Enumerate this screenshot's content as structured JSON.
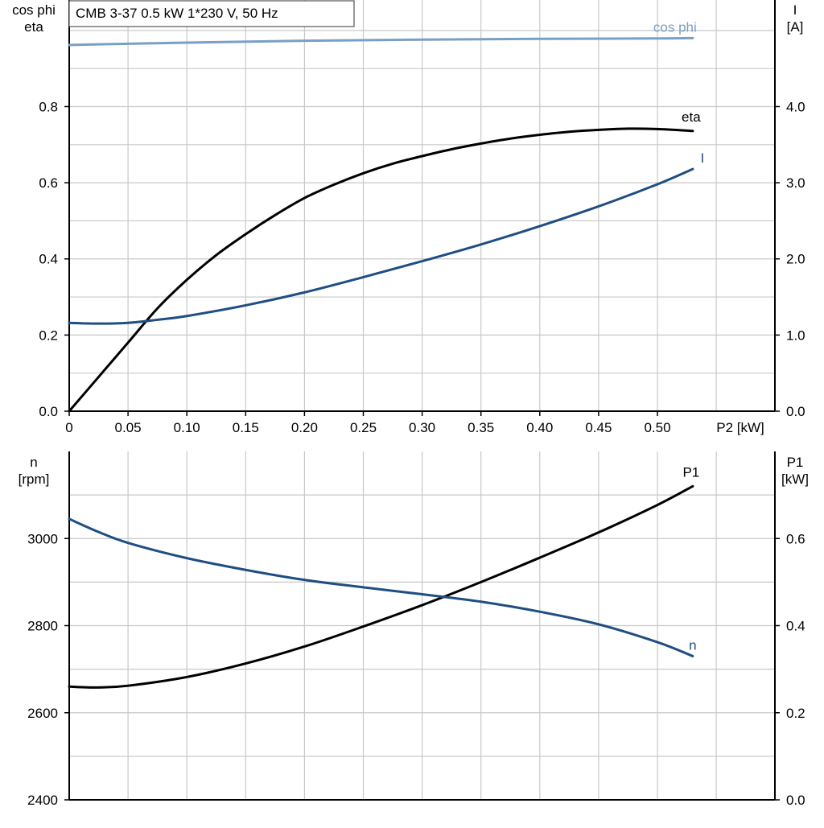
{
  "colors": {
    "black": "#000000",
    "blue": "#1f4e82",
    "lightblue": "#7a9fc4"
  },
  "chart_data": [
    {
      "type": "line",
      "title": "CMB 3-37   0.5 kW   1*230 V, 50 Hz",
      "xlabel": "P2 [kW]",
      "ylabel_left": [
        "cos phi",
        "eta"
      ],
      "ylabel_right": [
        "I",
        "[A]"
      ],
      "xlim": [
        0,
        0.6
      ],
      "ylim_left": [
        0,
        1.08
      ],
      "ylim_right": [
        0,
        5.4
      ],
      "xticks": [
        0,
        0.05,
        0.1,
        0.15,
        0.2,
        0.25,
        0.3,
        0.35,
        0.4,
        0.45,
        0.5
      ],
      "xtick_labels": [
        "0",
        "0.05",
        "0.10",
        "0.15",
        "0.20",
        "0.25",
        "0.30",
        "0.35",
        "0.40",
        "0.45",
        "0.50"
      ],
      "yticks_left": [
        0,
        0.2,
        0.4,
        0.6,
        0.8
      ],
      "ytick_labels_left": [
        "0.0",
        "0.2",
        "0.4",
        "0.6",
        "0.8"
      ],
      "yticks_right": [
        0,
        1,
        2,
        3,
        4
      ],
      "ytick_labels_right": [
        "0.0",
        "1.0",
        "2.0",
        "3.0",
        "4.0"
      ],
      "grid": true,
      "series": [
        {
          "name": "cos phi",
          "axis": "left",
          "color": "#7a9fc4",
          "x": [
            0,
            0.1,
            0.2,
            0.3,
            0.4,
            0.5,
            0.53
          ],
          "y": [
            0.962,
            0.968,
            0.973,
            0.976,
            0.978,
            0.979,
            0.98
          ]
        },
        {
          "name": "eta",
          "axis": "left",
          "color": "#000000",
          "x": [
            0,
            0.025,
            0.05,
            0.075,
            0.1,
            0.125,
            0.15,
            0.175,
            0.2,
            0.225,
            0.25,
            0.275,
            0.3,
            0.325,
            0.35,
            0.375,
            0.4,
            0.425,
            0.45,
            0.475,
            0.5,
            0.53
          ],
          "y": [
            0,
            0.09,
            0.18,
            0.27,
            0.345,
            0.41,
            0.465,
            0.515,
            0.56,
            0.595,
            0.625,
            0.65,
            0.67,
            0.688,
            0.703,
            0.716,
            0.726,
            0.734,
            0.739,
            0.742,
            0.741,
            0.736
          ]
        },
        {
          "name": "I",
          "axis": "right",
          "color": "#1f4e82",
          "x": [
            0,
            0.025,
            0.05,
            0.075,
            0.1,
            0.15,
            0.2,
            0.25,
            0.3,
            0.35,
            0.4,
            0.45,
            0.5,
            0.53
          ],
          "y": [
            1.16,
            1.15,
            1.16,
            1.2,
            1.25,
            1.39,
            1.56,
            1.76,
            1.97,
            2.19,
            2.43,
            2.69,
            2.98,
            3.18
          ]
        }
      ]
    },
    {
      "type": "line",
      "xlabel": "",
      "ylabel_left": [
        "n",
        "[rpm]"
      ],
      "ylabel_right": [
        "P1",
        "[kW]"
      ],
      "xlim": [
        0,
        0.6
      ],
      "ylim_left": [
        2400,
        3200
      ],
      "ylim_right": [
        0,
        0.8
      ],
      "yticks_left": [
        2400,
        2600,
        2800,
        3000
      ],
      "ytick_labels_left": [
        "2400",
        "2600",
        "2800",
        "3000"
      ],
      "yticks_right": [
        0,
        0.2,
        0.4,
        0.6
      ],
      "ytick_labels_right": [
        "0.0",
        "0.2",
        "0.4",
        "0.6"
      ],
      "grid": true,
      "series": [
        {
          "name": "P1",
          "axis": "right",
          "color": "#000000",
          "x": [
            0,
            0.025,
            0.05,
            0.1,
            0.15,
            0.2,
            0.25,
            0.3,
            0.35,
            0.4,
            0.45,
            0.5,
            0.53
          ],
          "y": [
            0.26,
            0.258,
            0.262,
            0.282,
            0.313,
            0.352,
            0.398,
            0.447,
            0.5,
            0.556,
            0.614,
            0.677,
            0.72
          ]
        },
        {
          "name": "n",
          "axis": "left",
          "color": "#1f4e82",
          "x": [
            0,
            0.025,
            0.05,
            0.1,
            0.15,
            0.2,
            0.25,
            0.3,
            0.35,
            0.4,
            0.45,
            0.5,
            0.53
          ],
          "y": [
            3045,
            3015,
            2990,
            2955,
            2928,
            2905,
            2888,
            2872,
            2855,
            2832,
            2803,
            2762,
            2730
          ]
        }
      ]
    }
  ]
}
